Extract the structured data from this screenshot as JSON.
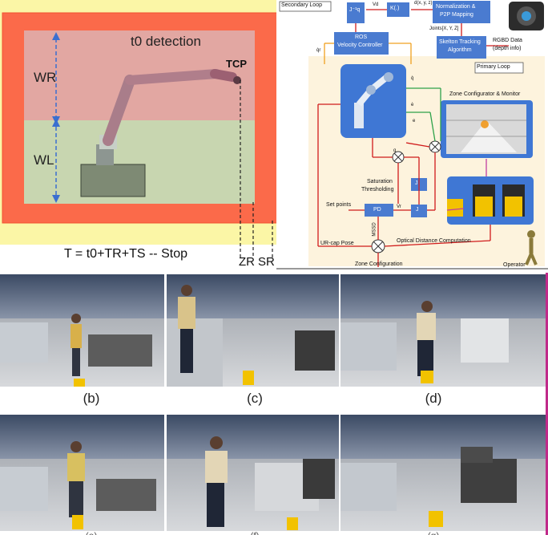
{
  "panel_a": {
    "title": "t0  detection",
    "tcp": "TCP",
    "wr": "WR",
    "wl": "WL",
    "zr": "ZR",
    "sr": "SR",
    "formula": "T = t0+TR+TS -- Stop"
  },
  "arch": {
    "secondary_loop": "Secondary Loop",
    "primary_loop": "Primary Loop",
    "jq": "J⁻¹q",
    "k": "K(.)",
    "vd": "Vd",
    "dxyz": "d(x, y, z)",
    "norm1": "Normalization &",
    "norm2": "P2P Mapping",
    "joints": "Joints[X, Y, Z]",
    "skel1": "Skelton Tracking",
    "skel2": "Algorithm",
    "rgbd1": "RGBD Data",
    "rgbd2": "(depth info)",
    "ros1": "ROS",
    "ros2": "Velocity Controller",
    "zone_cfg": "Zone Configurator & Monitor",
    "sat1": "Saturation",
    "sat2": "Thresholding",
    "setpoints": "Set points",
    "pd": "PD",
    "j": "J",
    "urcap": "UR-cap Pose",
    "mssd": "MSSD",
    "odc": "Optical Distance Computation",
    "zone_conf": "Zone Configuration",
    "operator": "Operator",
    "q": "q",
    "qdot": "q̇",
    "e": "e",
    "edot": "ė",
    "vr": "Vr",
    "qr": "q̇r"
  },
  "captions": {
    "b": "(b)",
    "c": "(c)",
    "d": "(d)",
    "e": "(e)",
    "f": "(f)",
    "g": "(g)"
  }
}
